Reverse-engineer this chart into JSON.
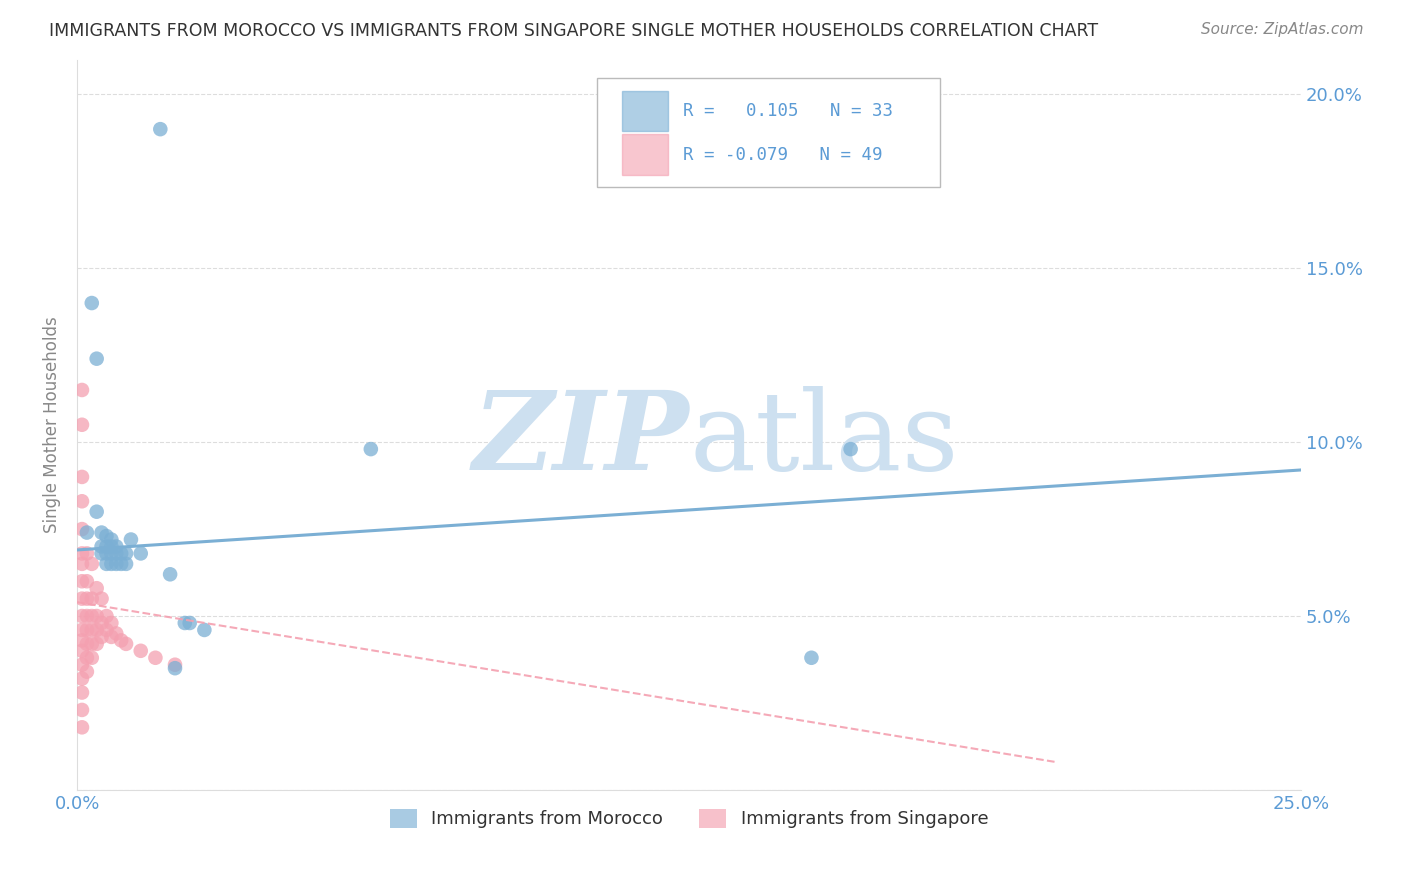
{
  "title": "IMMIGRANTS FROM MOROCCO VS IMMIGRANTS FROM SINGAPORE SINGLE MOTHER HOUSEHOLDS CORRELATION CHART",
  "source": "Source: ZipAtlas.com",
  "ylabel": "Single Mother Households",
  "xlim": [
    0.0,
    0.25
  ],
  "ylim": [
    0.0,
    0.21
  ],
  "xticks": [
    0.0,
    0.05,
    0.1,
    0.15,
    0.2,
    0.25
  ],
  "yticks": [
    0.0,
    0.05,
    0.1,
    0.15,
    0.2
  ],
  "ytick_labels": [
    "",
    "5.0%",
    "10.0%",
    "15.0%",
    "20.0%"
  ],
  "xtick_labels": [
    "0.0%",
    "",
    "",
    "",
    "",
    "25.0%"
  ],
  "morocco_color": "#7bafd4",
  "singapore_color": "#f4a0b0",
  "background_color": "#ffffff",
  "grid_color": "#dddddd",
  "title_color": "#333333",
  "label_color": "#888888",
  "tick_color": "#5b9bd5",
  "watermark_color": "#cde0f0",
  "morocco_points": [
    [
      0.002,
      0.074
    ],
    [
      0.003,
      0.14
    ],
    [
      0.004,
      0.124
    ],
    [
      0.004,
      0.08
    ],
    [
      0.005,
      0.074
    ],
    [
      0.005,
      0.07
    ],
    [
      0.005,
      0.068
    ],
    [
      0.006,
      0.073
    ],
    [
      0.006,
      0.07
    ],
    [
      0.006,
      0.068
    ],
    [
      0.006,
      0.065
    ],
    [
      0.007,
      0.072
    ],
    [
      0.007,
      0.07
    ],
    [
      0.007,
      0.068
    ],
    [
      0.007,
      0.065
    ],
    [
      0.008,
      0.07
    ],
    [
      0.008,
      0.068
    ],
    [
      0.008,
      0.065
    ],
    [
      0.009,
      0.068
    ],
    [
      0.009,
      0.065
    ],
    [
      0.01,
      0.068
    ],
    [
      0.01,
      0.065
    ],
    [
      0.011,
      0.072
    ],
    [
      0.013,
      0.068
    ],
    [
      0.017,
      0.19
    ],
    [
      0.019,
      0.062
    ],
    [
      0.02,
      0.035
    ],
    [
      0.022,
      0.048
    ],
    [
      0.023,
      0.048
    ],
    [
      0.026,
      0.046
    ],
    [
      0.06,
      0.098
    ],
    [
      0.15,
      0.038
    ],
    [
      0.158,
      0.098
    ]
  ],
  "singapore_points": [
    [
      0.001,
      0.115
    ],
    [
      0.001,
      0.105
    ],
    [
      0.001,
      0.09
    ],
    [
      0.001,
      0.083
    ],
    [
      0.001,
      0.075
    ],
    [
      0.001,
      0.068
    ],
    [
      0.001,
      0.065
    ],
    [
      0.001,
      0.06
    ],
    [
      0.001,
      0.055
    ],
    [
      0.001,
      0.05
    ],
    [
      0.001,
      0.046
    ],
    [
      0.001,
      0.043
    ],
    [
      0.001,
      0.04
    ],
    [
      0.001,
      0.036
    ],
    [
      0.001,
      0.032
    ],
    [
      0.001,
      0.028
    ],
    [
      0.001,
      0.023
    ],
    [
      0.001,
      0.018
    ],
    [
      0.002,
      0.068
    ],
    [
      0.002,
      0.06
    ],
    [
      0.002,
      0.055
    ],
    [
      0.002,
      0.05
    ],
    [
      0.002,
      0.046
    ],
    [
      0.002,
      0.042
    ],
    [
      0.002,
      0.038
    ],
    [
      0.002,
      0.034
    ],
    [
      0.003,
      0.065
    ],
    [
      0.003,
      0.055
    ],
    [
      0.003,
      0.05
    ],
    [
      0.003,
      0.046
    ],
    [
      0.003,
      0.042
    ],
    [
      0.003,
      0.038
    ],
    [
      0.004,
      0.058
    ],
    [
      0.004,
      0.05
    ],
    [
      0.004,
      0.046
    ],
    [
      0.004,
      0.042
    ],
    [
      0.005,
      0.055
    ],
    [
      0.005,
      0.048
    ],
    [
      0.005,
      0.044
    ],
    [
      0.006,
      0.05
    ],
    [
      0.006,
      0.046
    ],
    [
      0.007,
      0.048
    ],
    [
      0.007,
      0.044
    ],
    [
      0.008,
      0.045
    ],
    [
      0.009,
      0.043
    ],
    [
      0.01,
      0.042
    ],
    [
      0.013,
      0.04
    ],
    [
      0.016,
      0.038
    ],
    [
      0.02,
      0.036
    ]
  ],
  "morocco_line_x": [
    0.0,
    0.25
  ],
  "morocco_line_y": [
    0.069,
    0.092
  ],
  "singapore_line_x": [
    0.0,
    0.2
  ],
  "singapore_line_y": [
    0.054,
    0.008
  ]
}
